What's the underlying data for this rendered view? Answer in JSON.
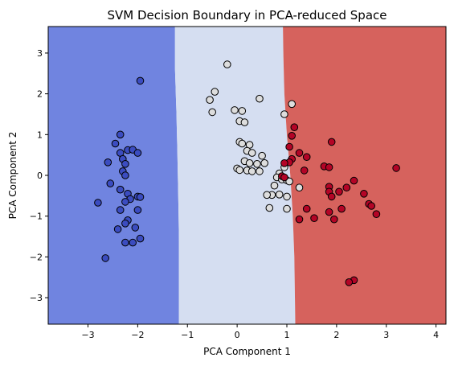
{
  "chart_data": {
    "type": "scatter",
    "title": "SVM Decision Boundary in PCA-reduced Space",
    "xlabel": "PCA Component 1",
    "ylabel": "PCA Component 2",
    "xlim": [
      -3.8,
      4.2
    ],
    "ylim": [
      -3.65,
      3.65
    ],
    "xticks": [
      -3,
      -2,
      -1,
      0,
      1,
      2,
      3,
      4
    ],
    "yticks": [
      -3,
      -2,
      -1,
      0,
      1,
      2,
      3
    ],
    "grid": false,
    "legend": "none",
    "regions": [
      {
        "class": 0,
        "color": "#7084e0",
        "boundary_to_next": [
          [
            -1.25,
            3.65
          ],
          [
            -1.25,
            2.6
          ],
          [
            -1.22,
            1.5
          ],
          [
            -1.2,
            0.4
          ],
          [
            -1.18,
            -0.8
          ],
          [
            -1.17,
            -1.6
          ],
          [
            -1.17,
            -3.65
          ]
        ]
      },
      {
        "class": 1,
        "color": "#d5def1",
        "boundary_to_next": [
          [
            0.92,
            3.65
          ],
          [
            0.93,
            2.9
          ],
          [
            0.95,
            2.0
          ],
          [
            1.0,
            1.0
          ],
          [
            1.07,
            0.0
          ],
          [
            1.12,
            -1.0
          ],
          [
            1.15,
            -2.0
          ],
          [
            1.17,
            -3.65
          ]
        ]
      },
      {
        "class": 2,
        "color": "#d6625d"
      }
    ],
    "series": [
      {
        "class": 0,
        "color": "#3b4cc0",
        "points": [
          [
            -1.95,
            2.32
          ],
          [
            -2.35,
            1.0
          ],
          [
            -2.45,
            0.78
          ],
          [
            -2.2,
            0.62
          ],
          [
            -2.35,
            0.55
          ],
          [
            -2.1,
            0.63
          ],
          [
            -2.0,
            0.55
          ],
          [
            -2.3,
            0.4
          ],
          [
            -2.6,
            0.32
          ],
          [
            -2.25,
            0.28
          ],
          [
            -2.3,
            0.1
          ],
          [
            -2.25,
            0.0
          ],
          [
            -2.55,
            -0.2
          ],
          [
            -2.35,
            -0.35
          ],
          [
            -2.2,
            -0.45
          ],
          [
            -2.0,
            -0.52
          ],
          [
            -1.95,
            -0.53
          ],
          [
            -2.15,
            -0.58
          ],
          [
            -2.8,
            -0.67
          ],
          [
            -2.25,
            -0.65
          ],
          [
            -2.35,
            -0.85
          ],
          [
            -2.0,
            -0.85
          ],
          [
            -2.2,
            -1.1
          ],
          [
            -2.25,
            -1.18
          ],
          [
            -2.4,
            -1.32
          ],
          [
            -2.05,
            -1.28
          ],
          [
            -2.25,
            -1.65
          ],
          [
            -2.1,
            -1.65
          ],
          [
            -1.95,
            -1.55
          ],
          [
            -2.65,
            -2.03
          ]
        ]
      },
      {
        "class": 1,
        "color": "#dddddd",
        "points": [
          [
            -0.2,
            2.72
          ],
          [
            -0.45,
            2.05
          ],
          [
            -0.55,
            1.85
          ],
          [
            -0.5,
            1.55
          ],
          [
            -0.05,
            1.6
          ],
          [
            0.45,
            1.88
          ],
          [
            0.1,
            1.58
          ],
          [
            0.05,
            1.33
          ],
          [
            0.15,
            1.3
          ],
          [
            1.1,
            1.75
          ],
          [
            0.95,
            1.5
          ],
          [
            0.05,
            0.82
          ],
          [
            0.1,
            0.78
          ],
          [
            0.25,
            0.75
          ],
          [
            0.2,
            0.6
          ],
          [
            0.3,
            0.55
          ],
          [
            0.5,
            0.48
          ],
          [
            0.15,
            0.35
          ],
          [
            0.25,
            0.3
          ],
          [
            0.4,
            0.28
          ],
          [
            0.55,
            0.3
          ],
          [
            0.0,
            0.17
          ],
          [
            0.05,
            0.13
          ],
          [
            0.2,
            0.12
          ],
          [
            0.3,
            0.1
          ],
          [
            0.45,
            0.1
          ],
          [
            0.85,
            0.05
          ],
          [
            0.95,
            0.2
          ],
          [
            0.8,
            -0.05
          ],
          [
            0.9,
            -0.1
          ],
          [
            1.0,
            -0.12
          ],
          [
            0.75,
            -0.25
          ],
          [
            1.05,
            -0.15
          ],
          [
            0.7,
            -0.48
          ],
          [
            0.85,
            -0.47
          ],
          [
            0.6,
            -0.48
          ],
          [
            1.0,
            -0.52
          ],
          [
            1.25,
            -0.3
          ],
          [
            0.65,
            -0.8
          ],
          [
            1.0,
            -0.82
          ]
        ]
      },
      {
        "class": 2,
        "color": "#b40426",
        "points": [
          [
            1.15,
            1.18
          ],
          [
            1.1,
            0.97
          ],
          [
            1.05,
            0.7
          ],
          [
            1.25,
            0.55
          ],
          [
            1.4,
            0.45
          ],
          [
            1.9,
            0.82
          ],
          [
            1.1,
            0.4
          ],
          [
            1.05,
            0.32
          ],
          [
            0.95,
            0.3
          ],
          [
            1.35,
            0.12
          ],
          [
            1.75,
            0.22
          ],
          [
            1.85,
            0.2
          ],
          [
            0.9,
            -0.02
          ],
          [
            0.95,
            -0.05
          ],
          [
            3.2,
            0.18
          ],
          [
            2.35,
            -0.13
          ],
          [
            2.2,
            -0.3
          ],
          [
            1.85,
            -0.28
          ],
          [
            1.85,
            -0.4
          ],
          [
            2.05,
            -0.4
          ],
          [
            1.9,
            -0.52
          ],
          [
            2.55,
            -0.45
          ],
          [
            2.65,
            -0.7
          ],
          [
            2.7,
            -0.75
          ],
          [
            2.8,
            -0.95
          ],
          [
            1.4,
            -0.82
          ],
          [
            1.85,
            -0.9
          ],
          [
            2.1,
            -0.82
          ],
          [
            1.25,
            -1.08
          ],
          [
            1.55,
            -1.05
          ],
          [
            1.95,
            -1.08
          ],
          [
            2.35,
            -2.57
          ],
          [
            2.25,
            -2.62
          ]
        ]
      }
    ]
  }
}
